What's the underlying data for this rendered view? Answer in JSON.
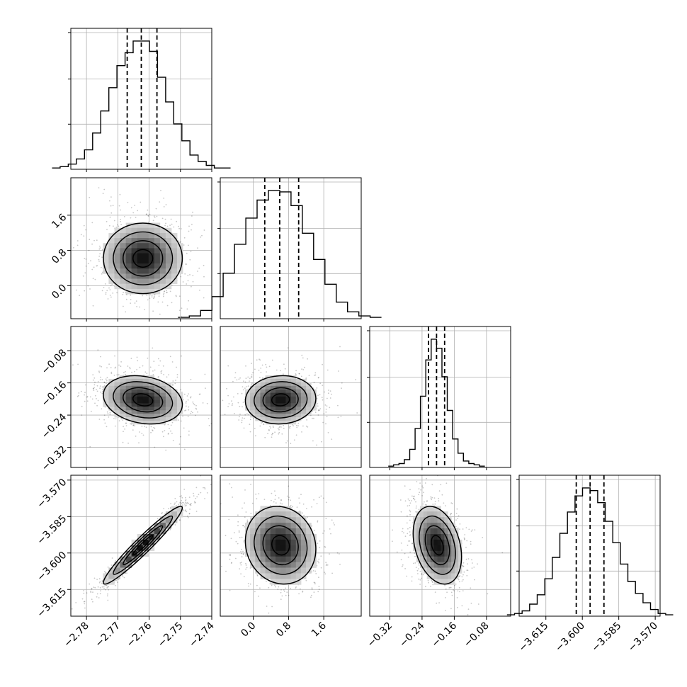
{
  "chart_data": {
    "type": "corner",
    "grid": true,
    "params": [
      {
        "id": "p0",
        "range": [
          -2.785,
          -2.74
        ],
        "ticks": [
          -2.78,
          -2.77,
          -2.76,
          -2.75,
          -2.74
        ],
        "labels": [
          "−2.78",
          "−2.77",
          "−2.76",
          "−2.75",
          "−2.74"
        ],
        "quantiles": [
          -2.767,
          -2.7625,
          -2.7575
        ]
      },
      {
        "id": "p1",
        "range": [
          -0.75,
          2.45
        ],
        "ticks": [
          0.0,
          0.8,
          1.6
        ],
        "labels": [
          "0.0",
          "0.8",
          "1.6"
        ],
        "quantiles": [
          0.26,
          0.6,
          1.03
        ]
      },
      {
        "id": "p2",
        "range": [
          -0.37,
          -0.02
        ],
        "ticks": [
          -0.32,
          -0.24,
          -0.16,
          -0.08
        ],
        "labels": [
          "−0.32",
          "−0.24",
          "−0.16",
          "−0.08"
        ],
        "quantiles": [
          -0.224,
          -0.204,
          -0.184
        ]
      },
      {
        "id": "p3",
        "range": [
          -3.626,
          -3.568
        ],
        "ticks": [
          -3.615,
          -3.6,
          -3.585,
          -3.57
        ],
        "labels": [
          "−3.615",
          "−3.600",
          "−3.585",
          "−3.570"
        ],
        "quantiles": [
          -3.6025,
          -3.5968,
          -3.5911
        ]
      }
    ],
    "histograms": [
      {
        "param": "p0",
        "counts": [
          1,
          2,
          4,
          8,
          15,
          28,
          45,
          63,
          80,
          90,
          99,
          99,
          91,
          71,
          52,
          35,
          22,
          11,
          6,
          3,
          1,
          1
        ]
      },
      {
        "param": "p1",
        "counts": [
          1,
          2,
          6,
          16,
          33,
          54,
          73,
          86,
          93,
          92,
          82,
          62,
          43,
          25,
          12,
          5,
          2,
          1
        ]
      },
      {
        "param": "p2",
        "counts": [
          1,
          2,
          3,
          6,
          14,
          30,
          55,
          83,
          99,
          92,
          70,
          44,
          22,
          11,
          5,
          3,
          2,
          1
        ]
      },
      {
        "param": "p3",
        "counts": [
          1,
          2,
          4,
          9,
          16,
          28,
          44,
          62,
          78,
          90,
          96,
          94,
          85,
          71,
          55,
          39,
          26,
          17,
          10,
          5,
          2,
          1
        ]
      }
    ],
    "pairs": [
      {
        "x": "p0",
        "y": "p1",
        "center": [
          -2.762,
          0.62
        ],
        "sd": [
          0.0063,
          0.4
        ],
        "corr": 0.0
      },
      {
        "x": "p0",
        "y": "p2",
        "center": [
          -2.762,
          -0.202
        ],
        "sd": [
          0.0063,
          0.03
        ],
        "corr": -0.2
      },
      {
        "x": "p1",
        "y": "p2",
        "center": [
          0.62,
          -0.202
        ],
        "sd": [
          0.4,
          0.03
        ],
        "corr": 0.05
      },
      {
        "x": "p0",
        "y": "p3",
        "center": [
          -2.762,
          -3.5968
        ],
        "sd": [
          0.0063,
          0.008
        ],
        "corr": 0.96
      },
      {
        "x": "p1",
        "y": "p3",
        "center": [
          0.62,
          -3.5968
        ],
        "sd": [
          0.4,
          0.008
        ],
        "corr": -0.1
      },
      {
        "x": "p2",
        "y": "p3",
        "center": [
          -0.202,
          -3.5968
        ],
        "sd": [
          0.03,
          0.008
        ],
        "corr": -0.3
      }
    ],
    "contour_levels_sigma": [
      0.5,
      1.0,
      1.5,
      2.0
    ]
  }
}
